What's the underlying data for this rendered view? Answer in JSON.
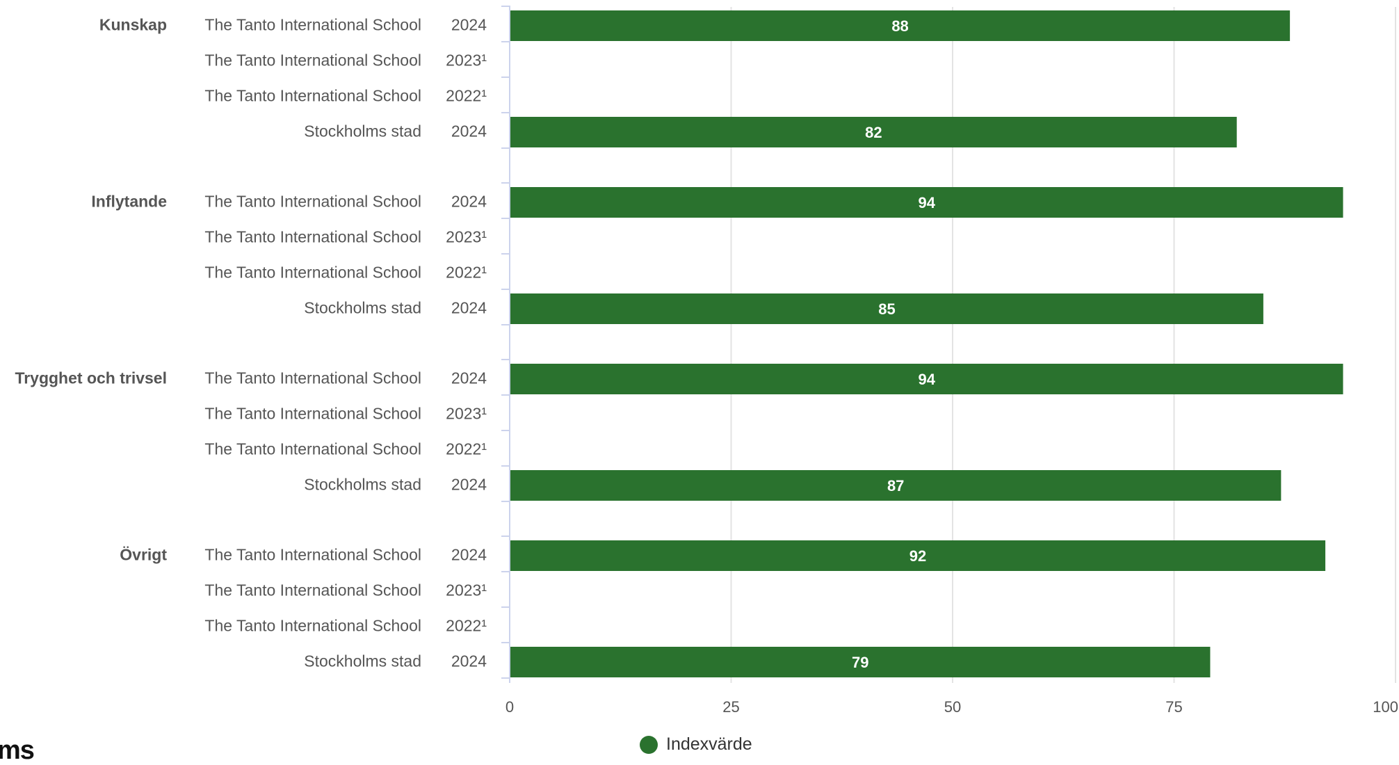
{
  "chart_data": {
    "type": "bar",
    "orientation": "horizontal",
    "xlim": [
      0,
      100
    ],
    "ticks": [
      "0",
      "25",
      "50",
      "75",
      "100"
    ],
    "grid": true,
    "legend_position": "bottom",
    "bar_color": "#2a722e",
    "series": [
      {
        "name": "Indexvärde"
      }
    ],
    "groups": [
      {
        "category": "Kunskap",
        "rows": [
          {
            "entity": "The Tanto International School",
            "year": "2024",
            "value": 88,
            "label": "88"
          },
          {
            "entity": "The Tanto International School",
            "year": "2023¹",
            "value": null,
            "label": ""
          },
          {
            "entity": "The Tanto International School",
            "year": "2022¹",
            "value": null,
            "label": ""
          },
          {
            "entity": "Stockholms stad",
            "year": "2024",
            "value": 82,
            "label": "82"
          }
        ]
      },
      {
        "category": "Inflytande",
        "rows": [
          {
            "entity": "The Tanto International School",
            "year": "2024",
            "value": 94,
            "label": "94"
          },
          {
            "entity": "The Tanto International School",
            "year": "2023¹",
            "value": null,
            "label": ""
          },
          {
            "entity": "The Tanto International School",
            "year": "2022¹",
            "value": null,
            "label": ""
          },
          {
            "entity": "Stockholms stad",
            "year": "2024",
            "value": 85,
            "label": "85"
          }
        ]
      },
      {
        "category": "Trygghet och trivsel",
        "rows": [
          {
            "entity": "The Tanto International School",
            "year": "2024",
            "value": 94,
            "label": "94"
          },
          {
            "entity": "The Tanto International School",
            "year": "2023¹",
            "value": null,
            "label": ""
          },
          {
            "entity": "The Tanto International School",
            "year": "2022¹",
            "value": null,
            "label": ""
          },
          {
            "entity": "Stockholms stad",
            "year": "2024",
            "value": 87,
            "label": "87"
          }
        ]
      },
      {
        "category": "Övrigt",
        "rows": [
          {
            "entity": "The Tanto International School",
            "year": "2024",
            "value": 92,
            "label": "92"
          },
          {
            "entity": "The Tanto International School",
            "year": "2023¹",
            "value": null,
            "label": ""
          },
          {
            "entity": "The Tanto International School",
            "year": "2022¹",
            "value": null,
            "label": ""
          },
          {
            "entity": "Stockholms stad",
            "year": "2024",
            "value": 79,
            "label": "79"
          }
        ]
      }
    ]
  },
  "legend": {
    "label": "Indexvärde"
  },
  "logo": {
    "text": "ms"
  }
}
